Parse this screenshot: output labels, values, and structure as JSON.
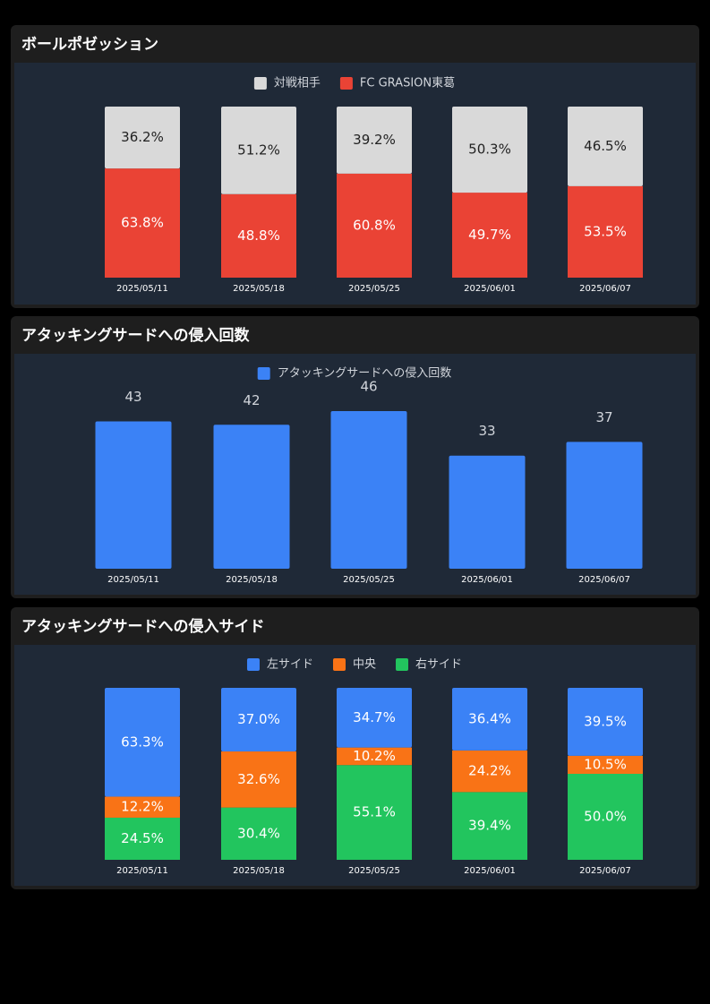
{
  "chart_data": [
    {
      "type": "stacked_bar",
      "title": "ボールポゼッション",
      "categories": [
        "2025/05/11",
        "2025/05/18",
        "2025/05/25",
        "2025/06/01",
        "2025/06/07"
      ],
      "series": [
        {
          "name": "対戦相手",
          "color": "#d9d9d9",
          "values": [
            36.2,
            51.2,
            39.2,
            50.3,
            46.5
          ],
          "value_labels": [
            "36.2%",
            "51.2%",
            "39.2%",
            "50.3%",
            "46.5%"
          ]
        },
        {
          "name": "FC GRASION東葛",
          "color": "#ea4335",
          "values": [
            63.8,
            48.8,
            60.8,
            49.7,
            53.5
          ],
          "value_labels": [
            "63.8%",
            "48.8%",
            "60.8%",
            "49.7%",
            "53.5%"
          ]
        }
      ]
    },
    {
      "type": "bar",
      "title": "アタッキングサードへの侵入回数",
      "categories": [
        "2025/05/11",
        "2025/05/18",
        "2025/05/25",
        "2025/06/01",
        "2025/06/07"
      ],
      "series": [
        {
          "name": "アタッキングサードへの侵入回数",
          "color": "#3b82f6",
          "values": [
            43,
            42,
            46,
            33,
            37
          ]
        }
      ]
    },
    {
      "type": "stacked_bar",
      "title": "アタッキングサードへの侵入サイド",
      "categories": [
        "2025/05/11",
        "2025/05/18",
        "2025/05/25",
        "2025/06/01",
        "2025/06/07"
      ],
      "series": [
        {
          "name": "左サイド",
          "color": "#3b82f6",
          "values": [
            63.3,
            37.0,
            34.7,
            36.4,
            39.5
          ],
          "value_labels": [
            "63.3%",
            "37.0%",
            "34.7%",
            "36.4%",
            "39.5%"
          ]
        },
        {
          "name": "中央",
          "color": "#f97316",
          "values": [
            12.2,
            32.6,
            10.2,
            24.2,
            10.5
          ],
          "value_labels": [
            "12.2%",
            "32.6%",
            "10.2%",
            "24.2%",
            "10.5%"
          ]
        },
        {
          "name": "右サイド",
          "color": "#22c55e",
          "values": [
            24.5,
            30.4,
            55.1,
            39.4,
            50.0
          ],
          "value_labels": [
            "24.5%",
            "30.4%",
            "55.1%",
            "39.4%",
            "50.0%"
          ]
        }
      ]
    }
  ]
}
